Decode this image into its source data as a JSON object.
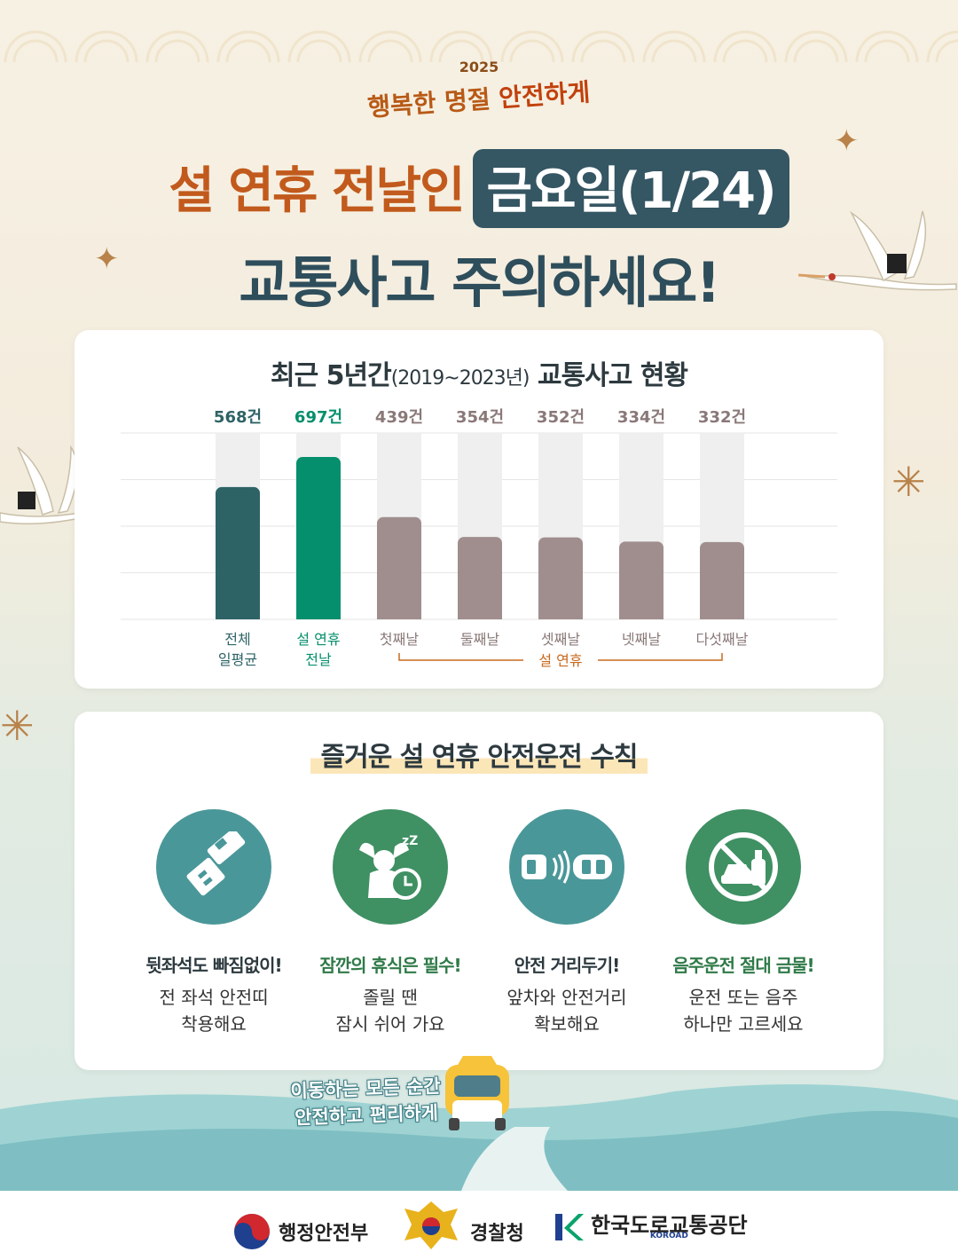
{
  "header": {
    "year": "2025",
    "subtitle_a": "행복한 명절 ",
    "subtitle_b": "안전하게",
    "line1_text": "설 연휴 전날인",
    "line1_badge": "금요일(1/24)",
    "line2_text": "교통사고 주의하세요!"
  },
  "chart_data": {
    "type": "bar",
    "title": "최근 5년간",
    "title_period": "(2019~2023년)",
    "title_tail": "교통사고 현황",
    "categories": [
      [
        "전체",
        "일평균"
      ],
      [
        "설 연휴",
        "전날"
      ],
      [
        "첫째날"
      ],
      [
        "둘째날"
      ],
      [
        "셋째날"
      ],
      [
        "넷째날"
      ],
      [
        "다섯째날"
      ]
    ],
    "values": [
      568,
      697,
      439,
      354,
      352,
      334,
      332
    ],
    "value_labels": [
      "568건",
      "697건",
      "439건",
      "354건",
      "352건",
      "334건",
      "332건"
    ],
    "group_label": "설 연휴",
    "ylim": [
      0,
      800
    ],
    "grid": true,
    "colors": [
      "#2e6366",
      "#058f6c",
      "#a08e8e",
      "#a08e8e",
      "#a08e8e",
      "#a08e8e",
      "#a08e8e"
    ],
    "label_colors": [
      "#2e6366",
      "#058f6c",
      "#8a7878",
      "#8a7878",
      "#8a7878",
      "#8a7878",
      "#8a7878"
    ],
    "group_color": "#c86a1e"
  },
  "rules": {
    "title": "즐거운 설 연휴 안전운전 수칙",
    "items": [
      {
        "icon": "seatbelt-icon",
        "head": "뒷좌석도 빠짐없이!",
        "body1": "전 좌석 안전띠",
        "body2": "착용해요",
        "color": "#4a9799",
        "head_color": "#2d3a3f"
      },
      {
        "icon": "rest-icon",
        "head": "잠깐의 휴식은 필수!",
        "body1": "졸릴 땐",
        "body2": "잠시 쉬어 가요",
        "color": "#3f9063",
        "head_color": "#2f7a48"
      },
      {
        "icon": "distance-icon",
        "head": "안전 거리두기!",
        "body1": "앞차와 안전거리",
        "body2": "확보해요",
        "color": "#4a9799",
        "head_color": "#2d3a3f"
      },
      {
        "icon": "no-drunk-driving-icon",
        "head": "음주운전 절대 금물!",
        "body1": "운전 또는 음주",
        "body2": "하나만 고르세요",
        "color": "#3f9063",
        "head_color": "#2f7a48"
      }
    ]
  },
  "slogan": {
    "line1": "이동하는 모든 순간",
    "line2": "안전하고 편리하게"
  },
  "footer": {
    "org1": "행정안전부",
    "org2": "경찰청",
    "org3": "한국도로교통공단",
    "org3_sub": "KOROAD"
  }
}
